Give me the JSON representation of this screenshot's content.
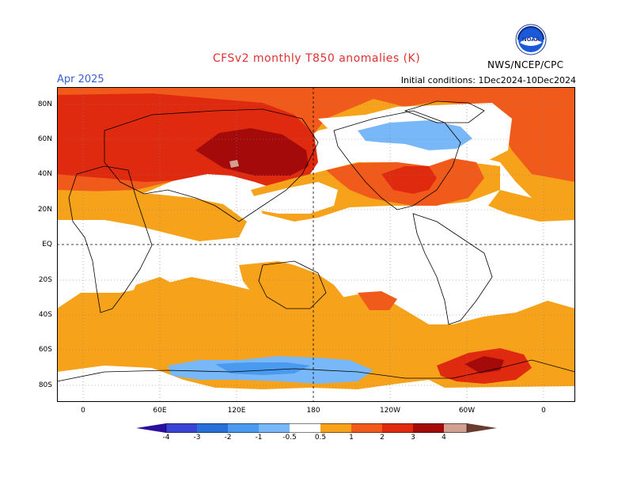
{
  "header": {
    "title": "CFSv2 monthly T850 anomalies (K)",
    "month": "Apr 2025",
    "initial_conditions": "Initial conditions: 1Dec2024-10Dec2024",
    "org": "NWS/NCEP/CPC",
    "logo_text": "NOAA"
  },
  "axes": {
    "lat_labels": [
      "80N",
      "60N",
      "40N",
      "20N",
      "EQ",
      "20S",
      "40S",
      "60S",
      "80S"
    ],
    "lon_labels": [
      "0",
      "60E",
      "120E",
      "180",
      "120W",
      "60W",
      "0"
    ]
  },
  "colorbar": {
    "labels": [
      "-4",
      "-3",
      "-2",
      "-1",
      "-0.5",
      "0.5",
      "1",
      "2",
      "3",
      "4"
    ],
    "colors": [
      "#2a0f9e",
      "#3a44d4",
      "#2870d8",
      "#4a9af0",
      "#78b8f8",
      "#ffffff",
      "#f7a21b",
      "#f05a1a",
      "#e02a10",
      "#a50a0a",
      "#d2a090",
      "#6a3c30"
    ]
  },
  "colors": {
    "lt_orange": "#f7a21b",
    "orange_red": "#f05a1a",
    "red": "#e02a10",
    "dark_red": "#a50a0a",
    "tan": "#d2a090",
    "lt_blue": "#78b8f8",
    "blue": "#4a9af0"
  }
}
